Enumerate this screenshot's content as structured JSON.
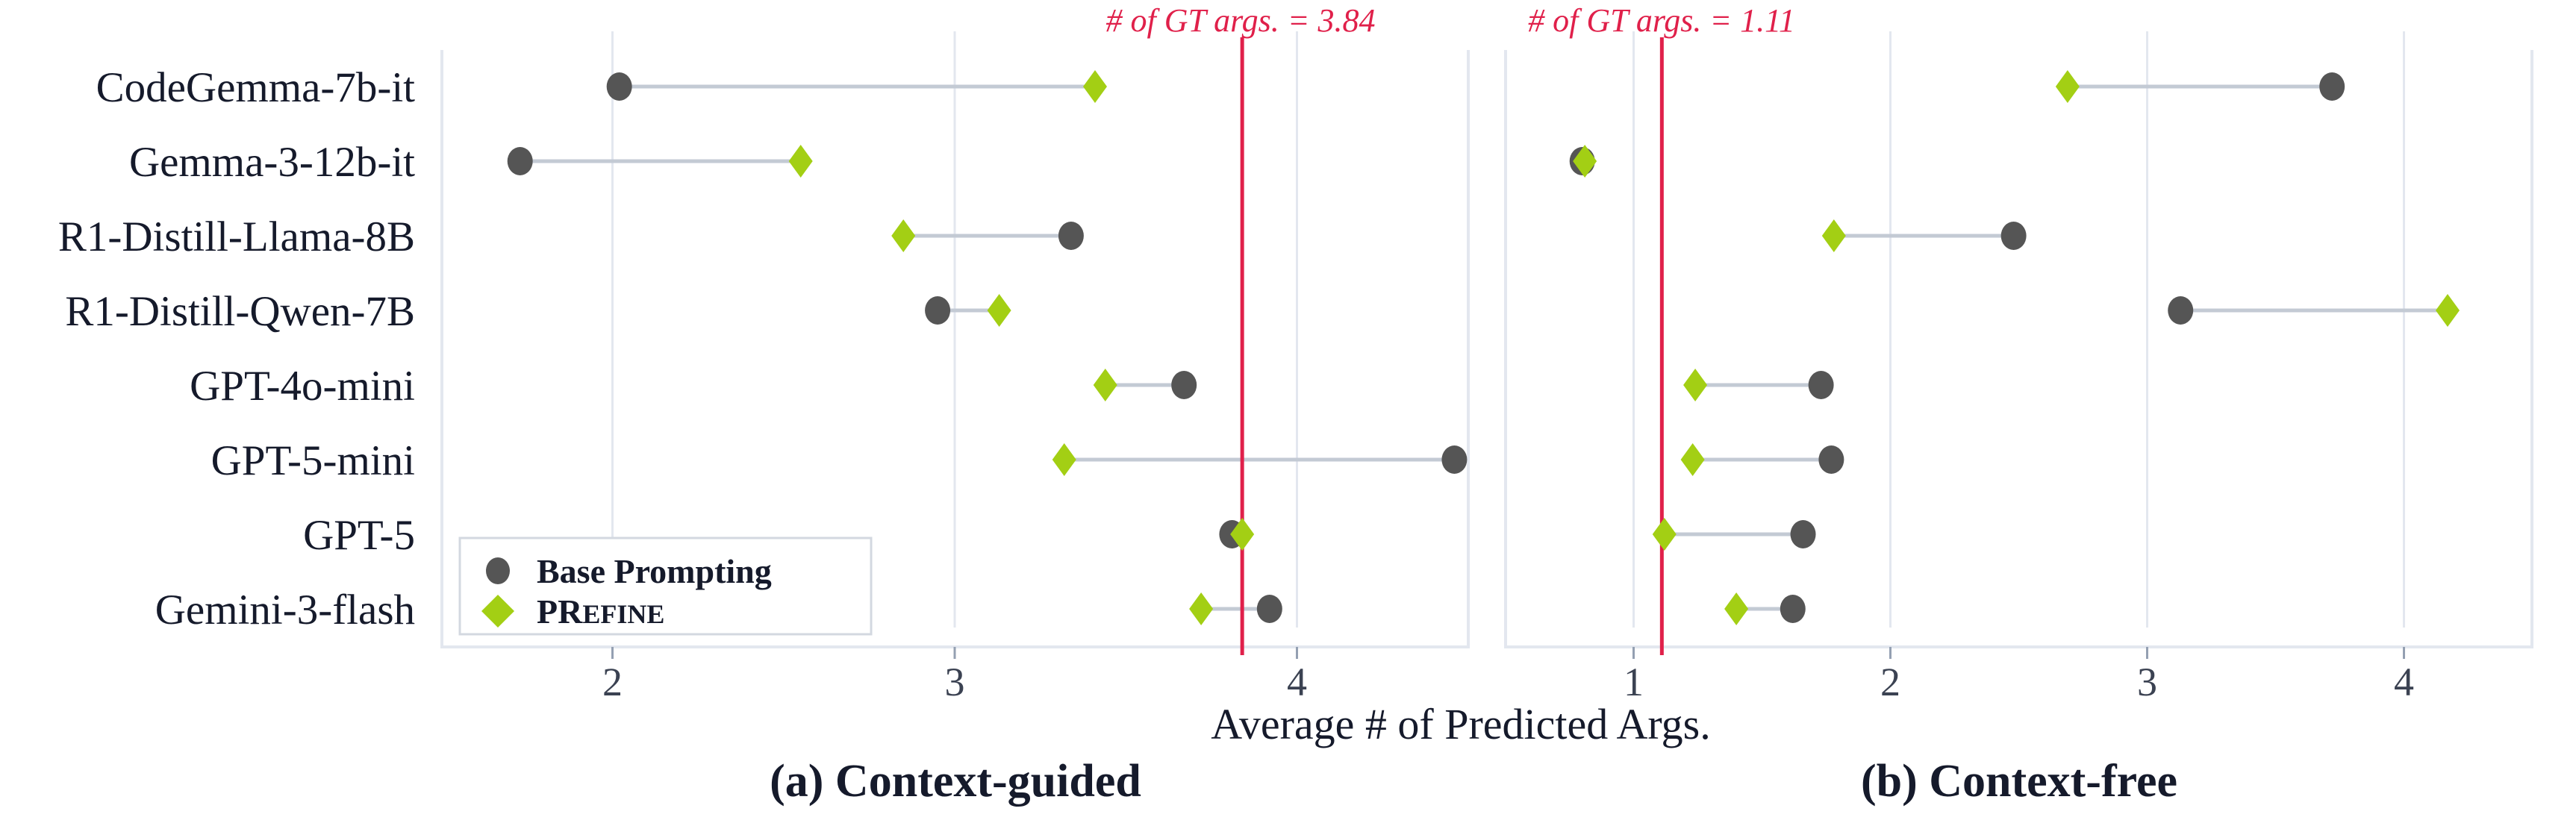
{
  "chart_data": [
    {
      "type": "dumbbell",
      "caption": "(a) Context-guided",
      "xlabel": "Average # of Predicted Args.",
      "xticks": [
        2,
        3,
        4
      ],
      "xlim": [
        1.5,
        4.5
      ],
      "reference_line": {
        "value": 3.84,
        "label": "# of GT args. = 3.84"
      },
      "categories": [
        "CodeGemma-7b-it",
        "Gemma-3-12b-it",
        "R1-Distill-Llama-8B",
        "R1-Distill-Qwen-7B",
        "GPT-4o-mini",
        "GPT-5-mini",
        "GPT-5",
        "Gemini-3-flash"
      ],
      "series": [
        {
          "name": "Base Prompting",
          "marker": "circle",
          "color": "#555555",
          "values": [
            2.02,
            1.73,
            3.34,
            2.95,
            3.67,
            4.46,
            3.81,
            3.92
          ]
        },
        {
          "name": "PRefine",
          "marker": "diamond",
          "color": "#a3cf14",
          "values": [
            3.41,
            2.55,
            2.85,
            3.13,
            3.44,
            3.32,
            3.84,
            3.72
          ]
        }
      ]
    },
    {
      "type": "dumbbell",
      "caption": "(b) Context-free",
      "xlabel": "Average # of Predicted Args.",
      "xticks": [
        1,
        2,
        3,
        4
      ],
      "xlim": [
        0.5,
        4.5
      ],
      "reference_line": {
        "value": 1.11,
        "label": "# of GT args. = 1.11"
      },
      "categories": [
        "CodeGemma-7b-it",
        "Gemma-3-12b-it",
        "R1-Distill-Llama-8B",
        "R1-Distill-Qwen-7B",
        "GPT-4o-mini",
        "GPT-5-mini",
        "GPT-5",
        "Gemini-3-flash"
      ],
      "series": [
        {
          "name": "Base Prompting",
          "marker": "circle",
          "color": "#555555",
          "values": [
            3.72,
            0.8,
            2.48,
            3.13,
            1.73,
            1.77,
            1.66,
            1.62
          ]
        },
        {
          "name": "PRefine",
          "marker": "diamond",
          "color": "#a3cf14",
          "values": [
            2.69,
            0.81,
            1.78,
            4.17,
            1.24,
            1.23,
            1.12,
            1.4
          ]
        }
      ]
    }
  ],
  "figure": {
    "y_labels": [
      "CodeGemma-7b-it",
      "Gemma-3-12b-it",
      "R1-Distill-Llama-8B",
      "R1-Distill-Qwen-7B",
      "GPT-4o-mini",
      "GPT-5-mini",
      "GPT-5",
      "Gemini-3-flash"
    ],
    "shared_xlabel": "Average # of Predicted Args.",
    "legend": {
      "base_label": "Base Prompting",
      "prefine_label_lead": "PR",
      "prefine_label_rest": "EFINE"
    },
    "colors": {
      "base": "#555555",
      "prefine": "#a3cf14",
      "reference": "#e0204a",
      "connector": "#c3cad4",
      "grid": "#e3e7ef"
    }
  }
}
